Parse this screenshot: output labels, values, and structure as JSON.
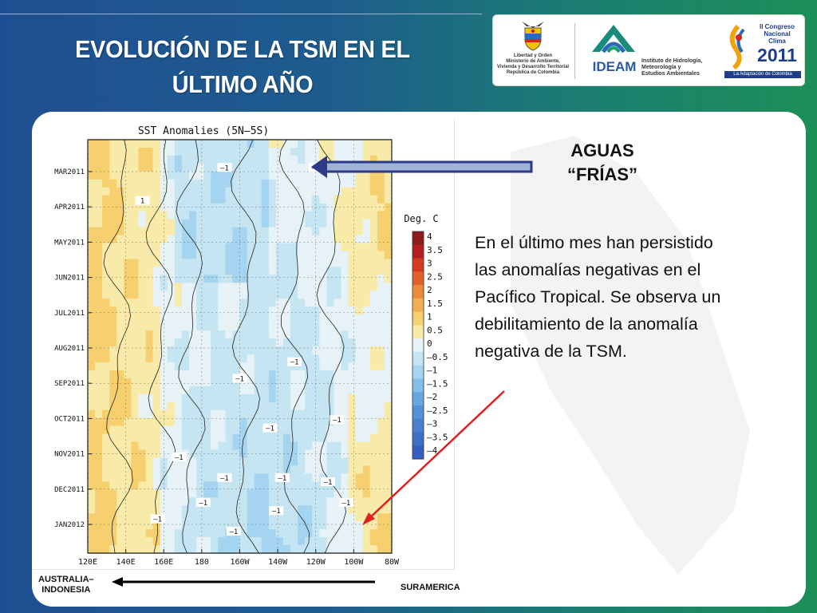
{
  "slide": {
    "title": "EVOLUCIÓN DE LA TSM EN EL\nÚLTIMO AÑO",
    "heading": "AGUAS\n“FRÍAS”",
    "body": "En el último mes han persistido\nlas anomalías negativas en el\nPacífico Tropical. Se observa un\ndebilitamiento de la anomalía\nnegativa de la TSM.",
    "left_label": "AUSTRALIA–\nINDONESIA",
    "right_label": "SURAMERICA",
    "colors": {
      "arrow_frias": "#2d3a88",
      "arrow_red": "#e02020",
      "arrow_bottom": "#000000"
    }
  },
  "logos": {
    "ministerio": "Libertad y Orden\nMinisterio de Ambiente,\nVivienda y Desarrollo Territorial\nRepública de Colombia",
    "ideam_name": "IDEAM",
    "ideam_full": "Instituto de Hidrología,\nMeteorología y\nEstudios Ambientales",
    "congreso_top": "II Congreso\nNacional\nClima",
    "congreso_year": "2011",
    "congreso_bottom": "La Adaptación de Colombia"
  },
  "chart_data": {
    "type": "heatmap",
    "title": "SST Anomalies (5N–5S)",
    "colorbar_title": "Deg. C",
    "x_ticks": [
      "120E",
      "140E",
      "160E",
      "180",
      "160W",
      "140W",
      "120W",
      "100W",
      "80W"
    ],
    "y_ticks": [
      "MAR2011",
      "APR2011",
      "MAY2011",
      "JUN2011",
      "JUL2011",
      "AUG2011",
      "SEP2011",
      "OCT2011",
      "NOV2011",
      "DEC2011",
      "JAN2012"
    ],
    "levels": [
      "4",
      "3.5",
      "3",
      "2.5",
      "2",
      "1.5",
      "1",
      "0.5",
      "0",
      "–0.5",
      "–1",
      "–1.5",
      "–2",
      "–2.5",
      "–3",
      "–3.5",
      "–4"
    ],
    "level_colors": [
      "#8c1b1b",
      "#b51e1e",
      "#d63a1f",
      "#e2602a",
      "#ec8a3b",
      "#f2ae55",
      "#f6d06e",
      "#f8eaa8",
      "#e6f2f6",
      "#c6e5f3",
      "#a4d4ef",
      "#84bfe9",
      "#6aa7e0",
      "#5690d6",
      "#4a7fcf",
      "#3f70c8",
      "#355fbf"
    ],
    "contour_labels": [
      "–1",
      "–1",
      "–1",
      "–1",
      "–1",
      "–1",
      "–1",
      "–1",
      "–1",
      "–1",
      "–1",
      "–1",
      "–1",
      "–1",
      "–1",
      "1"
    ]
  }
}
